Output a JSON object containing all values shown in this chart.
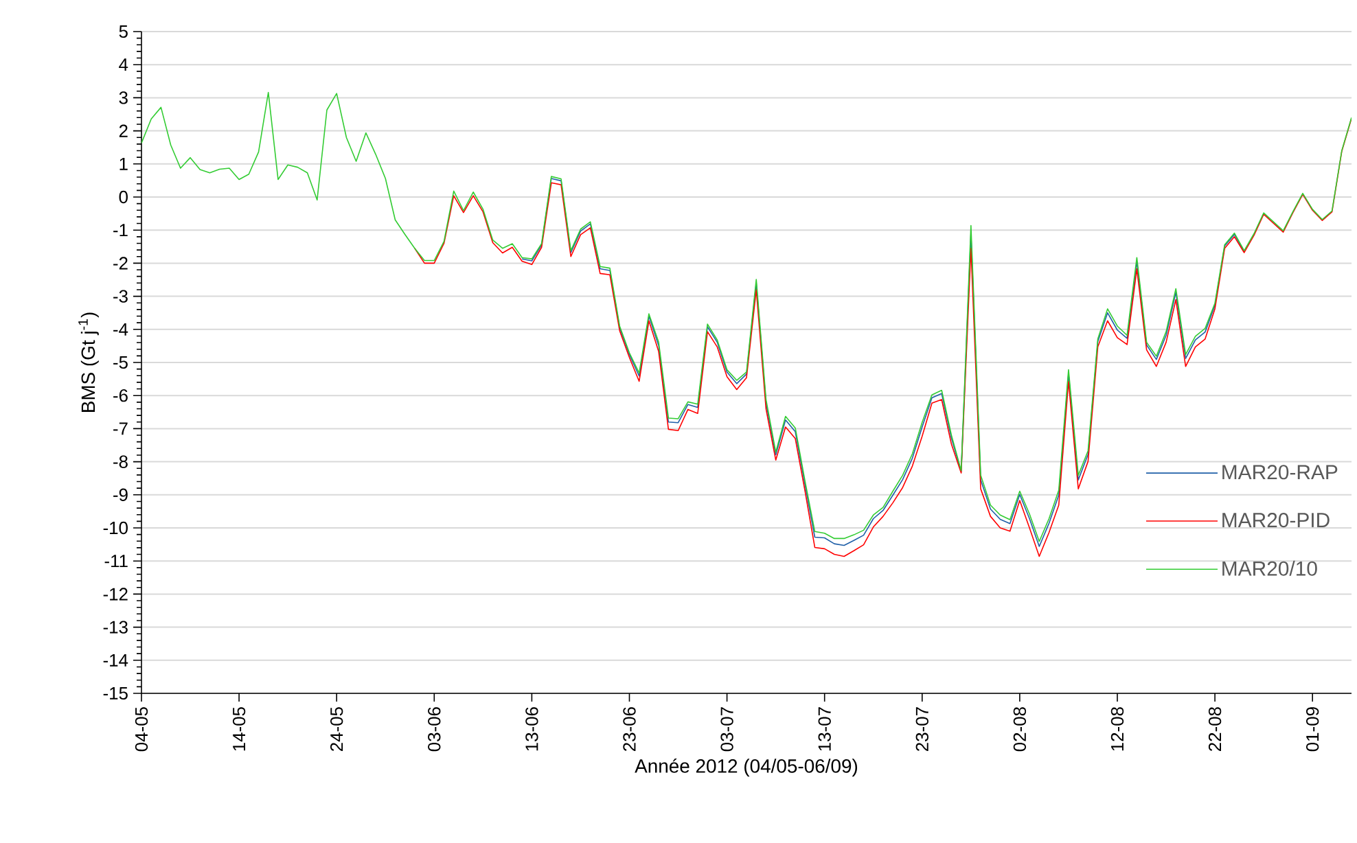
{
  "chart_data": {
    "type": "line",
    "xlabel": "Année 2012 (04/05-06/09)",
    "ylabel": "BMS (Gt j$^{-1}$)",
    "x": [
      "2012-05-04",
      "2012-05-05",
      "2012-05-06",
      "2012-05-07",
      "2012-05-08",
      "2012-05-09",
      "2012-05-10",
      "2012-05-11",
      "2012-05-12",
      "2012-05-13",
      "2012-05-14",
      "2012-05-15",
      "2012-05-16",
      "2012-05-17",
      "2012-05-18",
      "2012-05-19",
      "2012-05-20",
      "2012-05-21",
      "2012-05-22",
      "2012-05-23",
      "2012-05-24",
      "2012-05-25",
      "2012-05-26",
      "2012-05-27",
      "2012-05-28",
      "2012-05-29",
      "2012-05-30",
      "2012-05-31",
      "2012-06-01",
      "2012-06-02",
      "2012-06-03",
      "2012-06-04",
      "2012-06-05",
      "2012-06-06",
      "2012-06-07",
      "2012-06-08",
      "2012-06-09",
      "2012-06-10",
      "2012-06-11",
      "2012-06-12",
      "2012-06-13",
      "2012-06-14",
      "2012-06-15",
      "2012-06-16",
      "2012-06-17",
      "2012-06-18",
      "2012-06-19",
      "2012-06-20",
      "2012-06-21",
      "2012-06-22",
      "2012-06-23",
      "2012-06-24",
      "2012-06-25",
      "2012-06-26",
      "2012-06-27",
      "2012-06-28",
      "2012-06-29",
      "2012-06-30",
      "2012-07-01",
      "2012-07-02",
      "2012-07-03",
      "2012-07-04",
      "2012-07-05",
      "2012-07-06",
      "2012-07-07",
      "2012-07-08",
      "2012-07-09",
      "2012-07-10",
      "2012-07-11",
      "2012-07-12",
      "2012-07-13",
      "2012-07-14",
      "2012-07-15",
      "2012-07-16",
      "2012-07-17",
      "2012-07-18",
      "2012-07-19",
      "2012-07-20",
      "2012-07-21",
      "2012-07-22",
      "2012-07-23",
      "2012-07-24",
      "2012-07-25",
      "2012-07-26",
      "2012-07-27",
      "2012-07-28",
      "2012-07-29",
      "2012-07-30",
      "2012-07-31",
      "2012-08-01",
      "2012-08-02",
      "2012-08-03",
      "2012-08-04",
      "2012-08-05",
      "2012-08-06",
      "2012-08-07",
      "2012-08-08",
      "2012-08-09",
      "2012-08-10",
      "2012-08-11",
      "2012-08-12",
      "2012-08-13",
      "2012-08-14",
      "2012-08-15",
      "2012-08-16",
      "2012-08-17",
      "2012-08-18",
      "2012-08-19",
      "2012-08-20",
      "2012-08-21",
      "2012-08-22",
      "2012-08-23",
      "2012-08-24",
      "2012-08-25",
      "2012-08-26",
      "2012-08-27",
      "2012-08-28",
      "2012-08-29",
      "2012-08-30",
      "2012-08-31",
      "2012-09-01",
      "2012-09-02",
      "2012-09-03",
      "2012-09-04",
      "2012-09-05"
    ],
    "series": [
      {
        "name": "MAR20-RAP",
        "color": "#1f5fa8",
        "values": [
          null,
          null,
          null,
          null,
          null,
          null,
          null,
          null,
          null,
          null,
          null,
          null,
          null,
          null,
          null,
          null,
          null,
          null,
          null,
          null,
          null,
          null,
          null,
          null,
          null,
          null,
          null,
          null,
          null,
          null,
          null,
          null,
          null,
          null,
          null,
          null,
          null,
          null,
          null,
          -1.87,
          -1.93,
          -1.45,
          0.56,
          0.49,
          -1.68,
          -1.03,
          -0.81,
          -2.17,
          -2.22,
          -3.95,
          -4.76,
          -5.41,
          -3.6,
          -4.49,
          -6.8,
          -6.82,
          -6.27,
          -6.36,
          -3.92,
          -4.39,
          -5.29,
          -5.64,
          -5.35,
          -2.6,
          -6.22,
          -7.79,
          -6.74,
          -7.09,
          -8.7,
          -10.28,
          -10.3,
          -10.48,
          -10.53,
          -10.38,
          -10.22,
          -9.72,
          -9.47,
          -9.01,
          -8.54,
          -7.89,
          -6.95,
          -6.07,
          -5.94,
          -7.29,
          -8.3,
          -1.1,
          -8.55,
          -9.43,
          -9.74,
          -9.87,
          -8.99,
          -9.72,
          -10.56,
          -9.86,
          -9.01,
          -5.34,
          -8.55,
          -7.78,
          -4.37,
          -3.5,
          -4.02,
          -4.27,
          -1.95,
          -4.47,
          -4.91,
          -4.18,
          -2.88,
          -4.88,
          -4.32,
          -4.08,
          -3.27,
          -1.48,
          -1.13,
          -1.64,
          null,
          null,
          null,
          null,
          null,
          null,
          null,
          null,
          null,
          null,
          null
        ]
      },
      {
        "name": "MAR20-PID",
        "color": "#ff0000",
        "values": [
          null,
          null,
          null,
          null,
          null,
          null,
          null,
          null,
          null,
          null,
          null,
          null,
          null,
          null,
          null,
          null,
          null,
          null,
          null,
          null,
          null,
          null,
          null,
          null,
          null,
          null,
          null,
          null,
          -1.55,
          -2.0,
          -2.0,
          -1.4,
          0.04,
          -0.47,
          0.04,
          -0.45,
          -1.38,
          -1.69,
          -1.52,
          -1.94,
          -2.04,
          -1.52,
          0.43,
          0.37,
          -1.8,
          -1.14,
          -0.93,
          -2.31,
          -2.35,
          -4.04,
          -4.85,
          -5.57,
          -3.74,
          -4.67,
          -7.02,
          -7.06,
          -6.42,
          -6.54,
          -4.07,
          -4.53,
          -5.43,
          -5.82,
          -5.46,
          -2.8,
          -6.4,
          -7.95,
          -6.95,
          -7.3,
          -8.89,
          -10.59,
          -10.63,
          -10.8,
          -10.86,
          -10.69,
          -10.51,
          -9.97,
          -9.65,
          -9.24,
          -8.78,
          -8.13,
          -7.23,
          -6.23,
          -6.12,
          -7.47,
          -8.34,
          -1.55,
          -8.82,
          -9.65,
          -10.0,
          -10.1,
          -9.17,
          -10.0,
          -10.86,
          -10.14,
          -9.31,
          -5.57,
          -8.82,
          -7.99,
          -4.53,
          -3.74,
          -4.25,
          -4.46,
          -2.17,
          -4.62,
          -5.12,
          -4.39,
          -3.1,
          -5.12,
          -4.53,
          -4.29,
          -3.38,
          -1.55,
          -1.2,
          -1.68,
          -1.16,
          -0.52,
          -0.79,
          -1.06,
          -0.47,
          0.08,
          -0.4,
          -0.71,
          -0.45,
          1.38,
          2.38
        ]
      },
      {
        "name": "MAR20/10",
        "color": "#33cc33",
        "values": [
          1.63,
          2.36,
          2.71,
          1.57,
          0.87,
          1.19,
          0.83,
          0.73,
          0.84,
          0.87,
          0.53,
          0.69,
          1.36,
          3.16,
          0.53,
          0.97,
          0.9,
          0.73,
          -0.09,
          2.63,
          3.13,
          1.8,
          1.08,
          1.94,
          1.29,
          0.56,
          -0.69,
          -1.13,
          -1.55,
          -1.92,
          -1.92,
          -1.34,
          0.18,
          -0.41,
          0.15,
          -0.37,
          -1.3,
          -1.55,
          -1.41,
          -1.83,
          -1.87,
          -1.41,
          0.62,
          0.55,
          -1.62,
          -0.97,
          -0.75,
          -2.1,
          -2.15,
          -3.9,
          -4.71,
          -5.32,
          -3.53,
          -4.39,
          -6.68,
          -6.7,
          -6.19,
          -6.26,
          -3.84,
          -4.32,
          -5.22,
          -5.54,
          -5.29,
          -2.49,
          -6.12,
          -7.71,
          -6.63,
          -6.98,
          -8.59,
          -10.11,
          -10.16,
          -10.32,
          -10.32,
          -10.21,
          -10.07,
          -9.61,
          -9.38,
          -8.89,
          -8.41,
          -7.76,
          -6.81,
          -5.98,
          -5.84,
          -7.2,
          -8.27,
          -0.86,
          -8.41,
          -9.31,
          -9.61,
          -9.75,
          -8.89,
          -9.58,
          -10.41,
          -9.72,
          -8.86,
          -5.22,
          -8.41,
          -7.67,
          -4.29,
          -3.38,
          -3.9,
          -4.18,
          -1.83,
          -4.39,
          -4.81,
          -4.07,
          -2.77,
          -4.76,
          -4.21,
          -3.97,
          -3.21,
          -1.44,
          -1.09,
          -1.62,
          -1.11,
          -0.48,
          -0.75,
          -1.02,
          -0.44,
          0.11,
          -0.37,
          -0.68,
          -0.42,
          1.4,
          2.4
        ]
      }
    ],
    "xlim": [
      "2012-05-04",
      "2012-09-05"
    ],
    "xticks": [
      {
        "value": "2012-05-04",
        "label": "04-05"
      },
      {
        "value": "2012-05-14",
        "label": "14-05"
      },
      {
        "value": "2012-05-24",
        "label": "24-05"
      },
      {
        "value": "2012-06-03",
        "label": "03-06"
      },
      {
        "value": "2012-06-13",
        "label": "13-06"
      },
      {
        "value": "2012-06-23",
        "label": "23-06"
      },
      {
        "value": "2012-07-03",
        "label": "03-07"
      },
      {
        "value": "2012-07-13",
        "label": "13-07"
      },
      {
        "value": "2012-07-23",
        "label": "23-07"
      },
      {
        "value": "2012-08-02",
        "label": "02-08"
      },
      {
        "value": "2012-08-12",
        "label": "12-08"
      },
      {
        "value": "2012-08-22",
        "label": "22-08"
      },
      {
        "value": "2012-09-01",
        "label": "01-09"
      }
    ],
    "ylim": [
      -15,
      5
    ],
    "yticks": [
      -15,
      -14,
      -13,
      -12,
      -11,
      -10,
      -9,
      -8,
      -7,
      -6,
      -5,
      -4,
      -3,
      -2,
      -1,
      0,
      1,
      2,
      3,
      4,
      5
    ],
    "grid": "y",
    "legend": "right"
  }
}
